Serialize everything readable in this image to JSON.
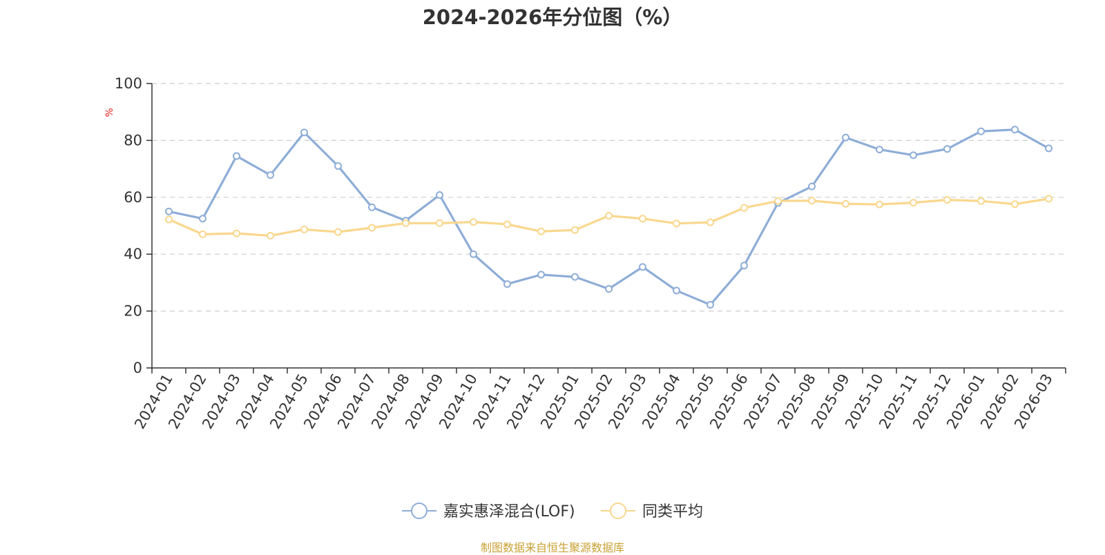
{
  "chart_data": {
    "type": "line",
    "title": "2024-2026年分位图（%）",
    "ylabel": "%",
    "ylim": [
      0,
      100
    ],
    "yticks": [
      0,
      20,
      40,
      60,
      80,
      100
    ],
    "grid": true,
    "legend_position": "bottom",
    "categories": [
      "2024-01",
      "2024-02",
      "2024-03",
      "2024-04",
      "2024-05",
      "2024-06",
      "2024-07",
      "2024-08",
      "2024-09",
      "2024-10",
      "2024-11",
      "2024-12",
      "2025-01",
      "2025-02",
      "2025-03",
      "2025-04",
      "2025-05",
      "2025-06",
      "2025-07",
      "2025-08",
      "2025-09",
      "2025-10",
      "2025-11",
      "2025-12",
      "2026-01",
      "2026-02",
      "2026-03"
    ],
    "series": [
      {
        "name": "嘉实惠泽混合(LOF)",
        "color": "#8eadd7",
        "values": [
          55.0,
          52.5,
          74.5,
          67.8,
          82.8,
          71.0,
          56.5,
          51.8,
          60.8,
          40.0,
          29.5,
          32.8,
          32.0,
          27.8,
          35.5,
          27.2,
          22.2,
          36.0,
          58.0,
          63.8,
          81.0,
          76.8,
          74.8,
          77.0,
          83.2,
          83.8,
          77.2
        ]
      },
      {
        "name": "同类平均",
        "color": "#f9d78d",
        "values": [
          52.2,
          47.0,
          47.3,
          46.5,
          48.7,
          47.8,
          49.3,
          50.9,
          50.9,
          51.3,
          50.5,
          48.0,
          48.5,
          53.5,
          52.5,
          50.8,
          51.2,
          56.3,
          58.7,
          58.8,
          57.7,
          57.5,
          58.1,
          59.1,
          58.7,
          57.6,
          59.5
        ]
      }
    ]
  },
  "colors": {
    "axis": "#333333",
    "grid": "#cccccc",
    "ylabel": "#e02020",
    "source": "#c8a134"
  },
  "source_note": "制图数据来自恒生聚源数据库"
}
